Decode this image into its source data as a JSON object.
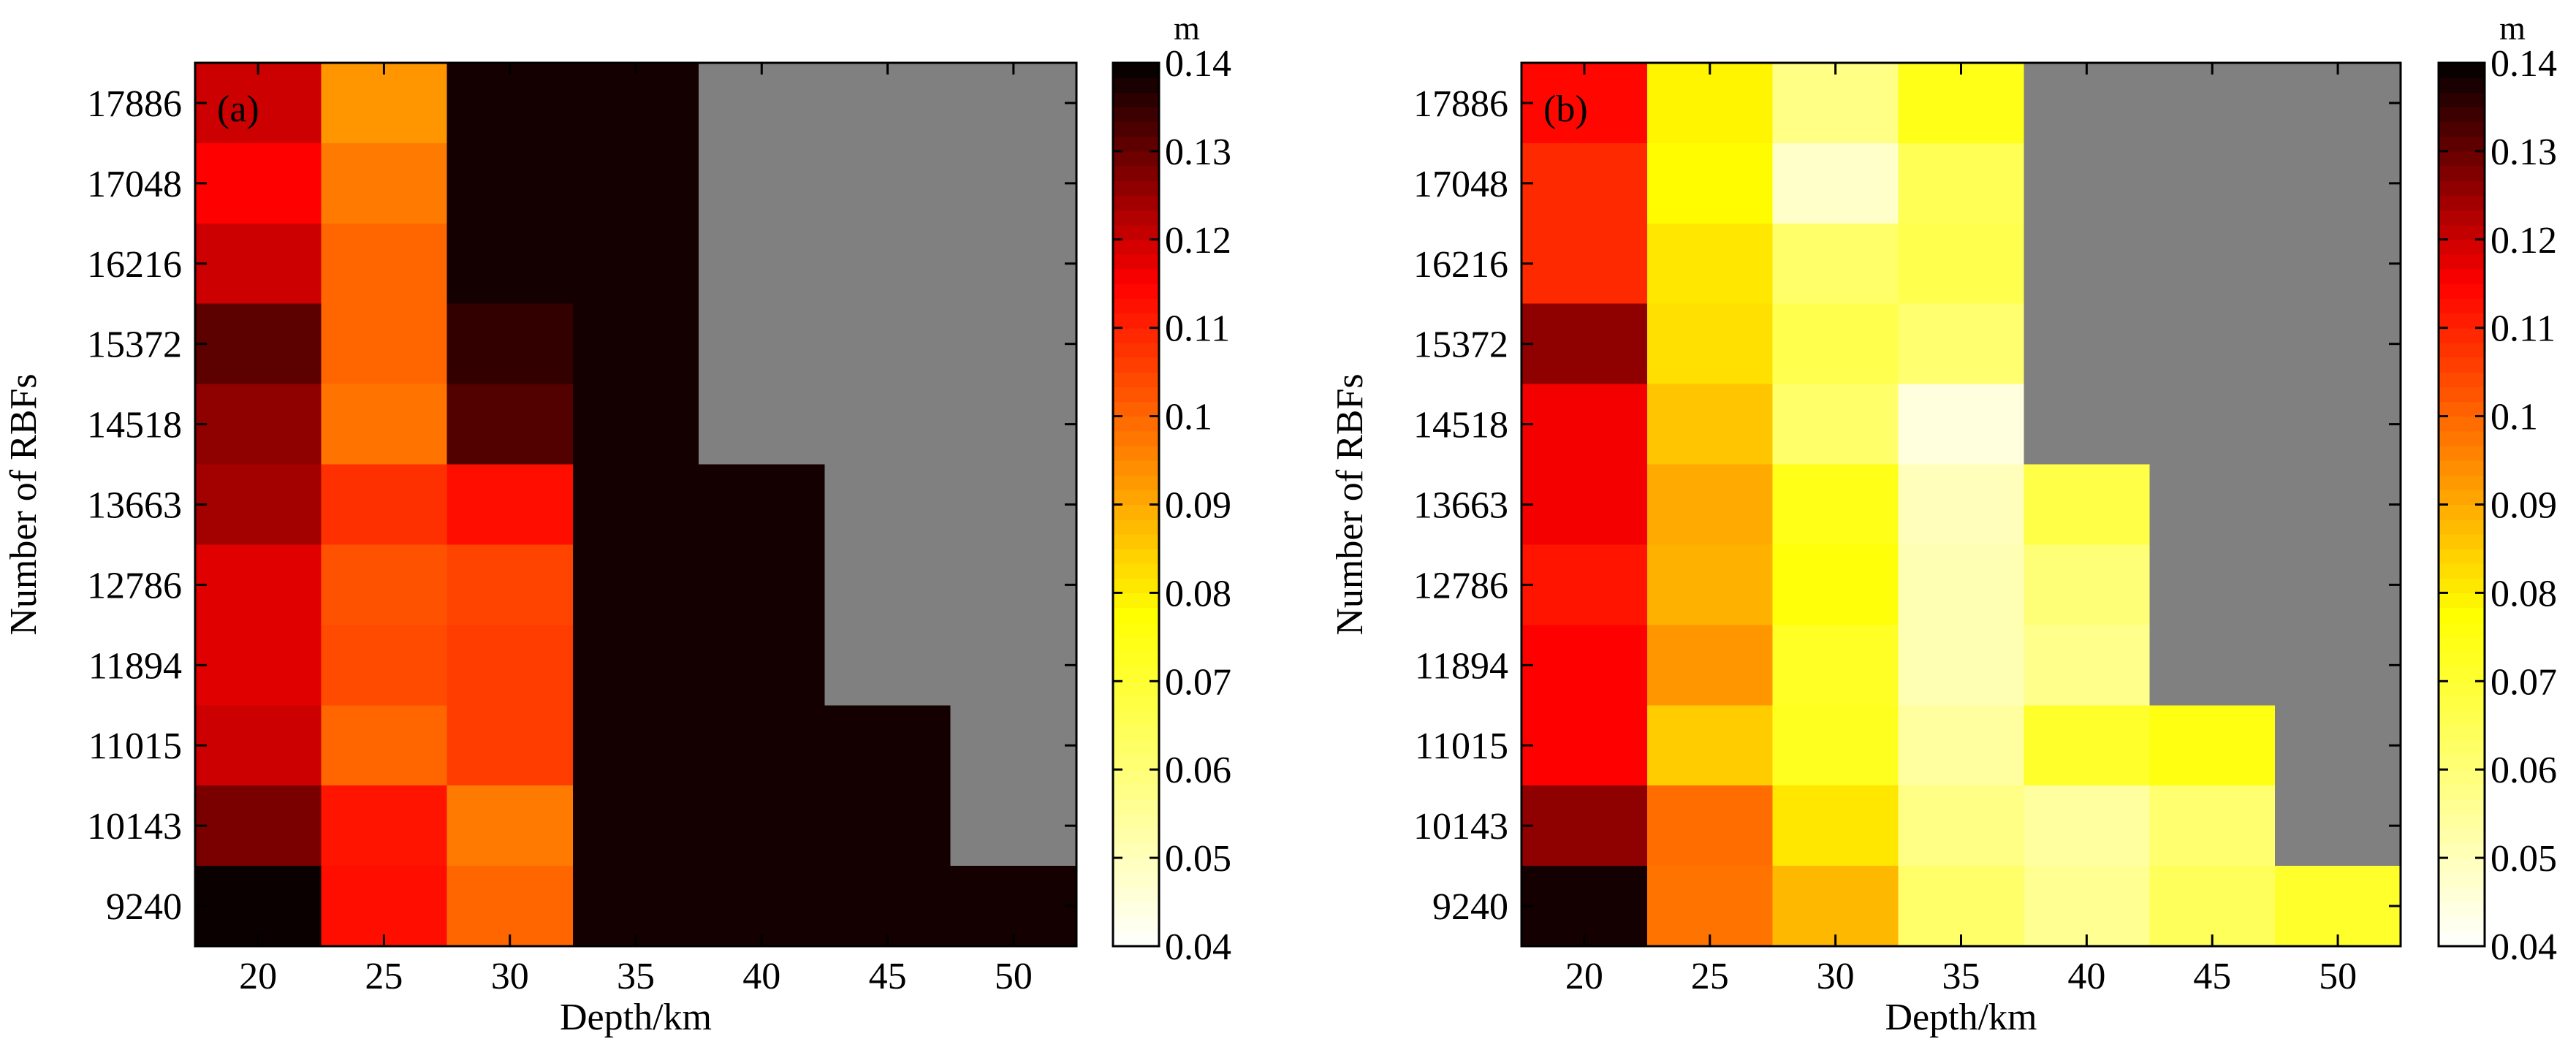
{
  "chart_data": [
    {
      "type": "heatmap",
      "panel_label": "(a)",
      "xlabel": "Depth/km",
      "ylabel": "Number of RBFs",
      "x": [
        "20",
        "25",
        "30",
        "35",
        "40",
        "45",
        "50"
      ],
      "y": [
        "17886",
        "17048",
        "16216",
        "15372",
        "14518",
        "13663",
        "12786",
        "11894",
        "11015",
        "10143",
        "9240"
      ],
      "z_missing_color": "#808080",
      "values": [
        [
          0.12,
          0.093,
          0.138,
          0.138,
          null,
          null,
          null
        ],
        [
          0.115,
          0.097,
          0.138,
          0.138,
          null,
          null,
          null
        ],
        [
          0.12,
          0.1,
          0.138,
          0.138,
          null,
          null,
          null
        ],
        [
          0.131,
          0.1,
          0.135,
          0.138,
          null,
          null,
          null
        ],
        [
          0.126,
          0.098,
          0.132,
          0.138,
          null,
          null,
          null
        ],
        [
          0.124,
          0.108,
          0.113,
          0.138,
          0.138,
          null,
          null
        ],
        [
          0.118,
          0.103,
          0.105,
          0.138,
          0.138,
          null,
          null
        ],
        [
          0.118,
          0.104,
          0.106,
          0.138,
          0.138,
          null,
          null
        ],
        [
          0.12,
          0.1,
          0.106,
          0.138,
          0.138,
          0.138,
          null
        ],
        [
          0.128,
          0.112,
          0.097,
          0.138,
          0.138,
          0.138,
          null
        ],
        [
          0.139,
          0.113,
          0.1,
          0.138,
          0.138,
          0.138,
          0.138
        ]
      ],
      "colorbar": {
        "unit": "m",
        "min": 0.04,
        "max": 0.14,
        "ticks": [
          "0.04",
          "0.05",
          "0.06",
          "0.07",
          "0.08",
          "0.09",
          "0.1",
          "0.11",
          "0.12",
          "0.13",
          "0.14"
        ]
      }
    },
    {
      "type": "heatmap",
      "panel_label": "(b)",
      "xlabel": "Depth/km",
      "ylabel": "Number of RBFs",
      "x": [
        "20",
        "25",
        "30",
        "35",
        "40",
        "45",
        "50"
      ],
      "y": [
        "17886",
        "17048",
        "16216",
        "15372",
        "14518",
        "13663",
        "12786",
        "11894",
        "11015",
        "10143",
        "9240"
      ],
      "z_missing_color": "#808080",
      "values": [
        [
          0.114,
          0.079,
          0.058,
          0.074,
          null,
          null,
          null
        ],
        [
          0.109,
          0.078,
          0.048,
          0.065,
          null,
          null,
          null
        ],
        [
          0.109,
          0.081,
          0.062,
          0.066,
          null,
          null,
          null
        ],
        [
          0.126,
          0.082,
          0.066,
          0.061,
          null,
          null,
          null
        ],
        [
          0.116,
          0.086,
          0.062,
          0.045,
          null,
          null,
          null
        ],
        [
          0.116,
          0.09,
          0.074,
          0.05,
          0.067,
          null,
          null
        ],
        [
          0.112,
          0.089,
          0.076,
          0.051,
          0.06,
          null,
          null
        ],
        [
          0.115,
          0.093,
          0.072,
          0.051,
          0.057,
          null,
          null
        ],
        [
          0.115,
          0.085,
          0.073,
          0.054,
          0.071,
          0.075,
          null
        ],
        [
          0.126,
          0.099,
          0.081,
          0.058,
          0.054,
          0.061,
          null
        ],
        [
          0.138,
          0.098,
          0.088,
          0.062,
          0.056,
          0.064,
          0.071
        ]
      ],
      "colorbar": {
        "unit": "m",
        "min": 0.04,
        "max": 0.14,
        "ticks": [
          "0.04",
          "0.05",
          "0.06",
          "0.07",
          "0.08",
          "0.09",
          "0.1",
          "0.11",
          "0.12",
          "0.13",
          "0.14"
        ]
      }
    }
  ]
}
